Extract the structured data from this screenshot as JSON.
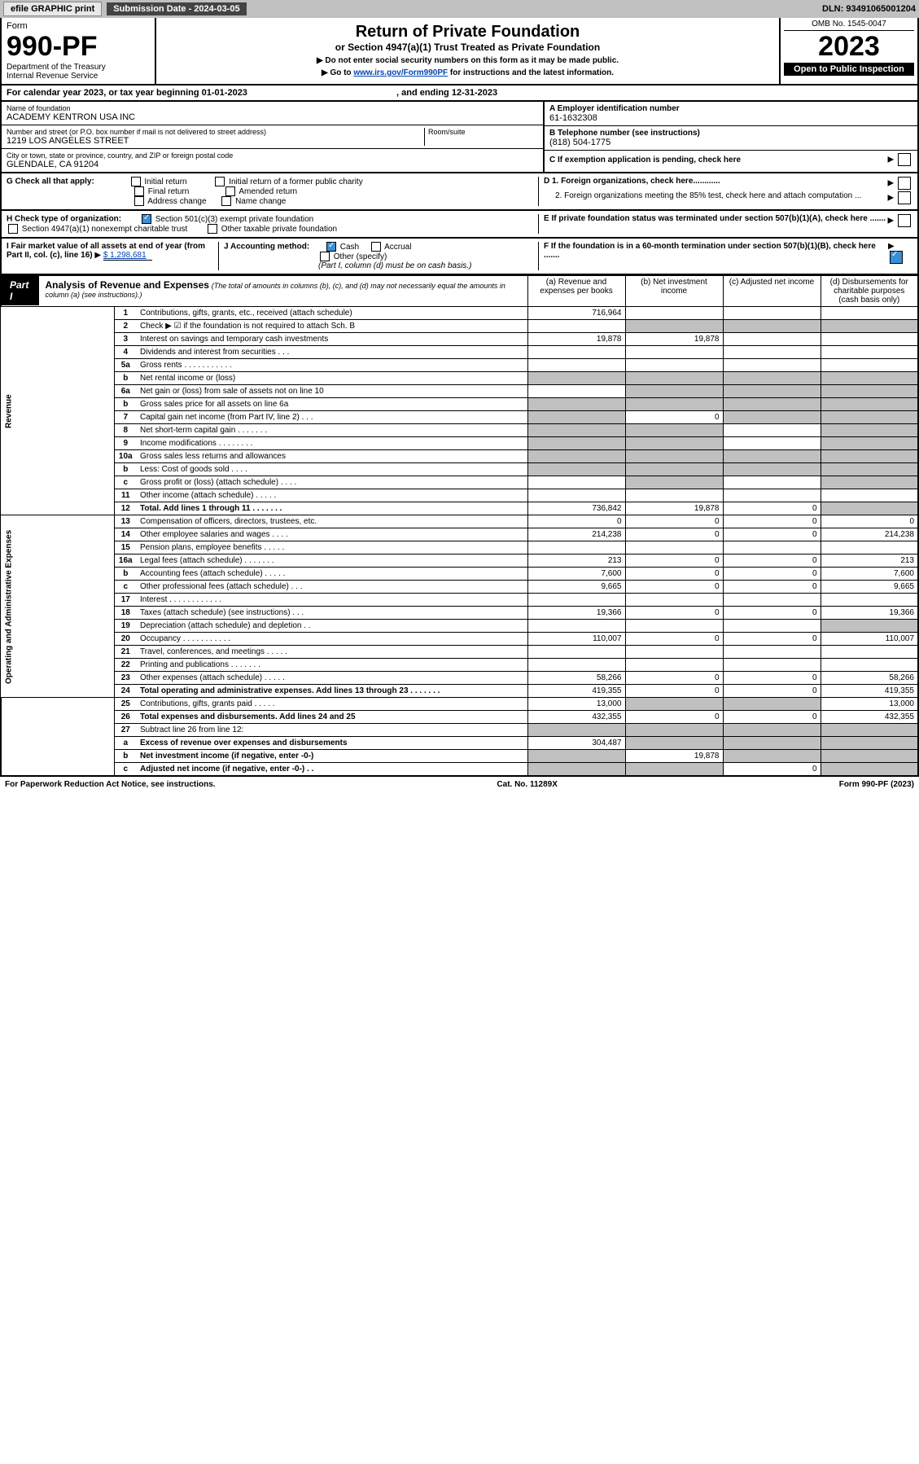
{
  "topbar": {
    "efile": "efile GRAPHIC print",
    "sub_label": "Submission Date - 2024-03-05",
    "dln": "DLN: 93491065001204"
  },
  "header": {
    "form_word": "Form",
    "form_num": "990-PF",
    "dept": "Department of the Treasury",
    "irs": "Internal Revenue Service",
    "title": "Return of Private Foundation",
    "subtitle": "or Section 4947(a)(1) Trust Treated as Private Foundation",
    "note1": "▶ Do not enter social security numbers on this form as it may be made public.",
    "note2_pre": "▶ Go to ",
    "note2_link": "www.irs.gov/Form990PF",
    "note2_post": " for instructions and the latest information.",
    "omb": "OMB No. 1545-0047",
    "year": "2023",
    "open": "Open to Public Inspection"
  },
  "cal": {
    "text_pre": "For calendar year 2023, or tax year beginning ",
    "begin": "01-01-2023",
    "mid": " , and ending ",
    "end": "12-31-2023"
  },
  "foundation": {
    "name_label": "Name of foundation",
    "name": "ACADEMY KENTRON USA INC",
    "addr_label": "Number and street (or P.O. box number if mail is not delivered to street address)",
    "addr": "1219 LOS ANGELES STREET",
    "room_label": "Room/suite",
    "city_label": "City or town, state or province, country, and ZIP or foreign postal code",
    "city": "GLENDALE, CA  91204",
    "a_label": "A Employer identification number",
    "ein": "61-1632308",
    "b_label": "B Telephone number (see instructions)",
    "phone": "(818) 504-1775",
    "c_label": "C If exemption application is pending, check here",
    "d1": "D 1. Foreign organizations, check here............",
    "d2": "2. Foreign organizations meeting the 85% test, check here and attach computation ...",
    "e_label": "E  If private foundation status was terminated under section 507(b)(1)(A), check here .......",
    "f_label": "F  If the foundation is in a 60-month termination under section 507(b)(1)(B), check here .......",
    "g_label": "G Check all that apply:",
    "g_opts": [
      "Initial return",
      "Initial return of a former public charity",
      "Final return",
      "Amended return",
      "Address change",
      "Name change"
    ],
    "h_label": "H Check type of organization:",
    "h1": "Section 501(c)(3) exempt private foundation",
    "h2": "Section 4947(a)(1) nonexempt charitable trust",
    "h3": "Other taxable private foundation",
    "i_label": "I Fair market value of all assets at end of year (from Part II, col. (c), line 16)",
    "i_val": "$  1,298,681",
    "j_label": "J Accounting method:",
    "j_cash": "Cash",
    "j_accrual": "Accrual",
    "j_other": "Other (specify)",
    "j_note": "(Part I, column (d) must be on cash basis.)"
  },
  "part1": {
    "num": "Part I",
    "title": "Analysis of Revenue and Expenses",
    "title_note": "(The total of amounts in columns (b), (c), and (d) may not necessarily equal the amounts in column (a) (see instructions).)",
    "cols": {
      "a": "(a) Revenue and expenses per books",
      "b": "(b) Net investment income",
      "c": "(c) Adjusted net income",
      "d": "(d) Disbursements for charitable purposes (cash basis only)"
    },
    "sections": {
      "rev": "Revenue",
      "opex": "Operating and Administrative Expenses"
    },
    "rows": [
      {
        "n": "1",
        "t": "Contributions, gifts, grants, etc., received (attach schedule)",
        "a": "716,964",
        "b": "",
        "c": "",
        "d": ""
      },
      {
        "n": "2",
        "t": "Check ▶ ☑ if the foundation is not required to attach Sch. B",
        "a": "",
        "b": "",
        "c": "",
        "d": "",
        "shadeA": false,
        "shadeBCD": true,
        "blank": true
      },
      {
        "n": "3",
        "t": "Interest on savings and temporary cash investments",
        "a": "19,878",
        "b": "19,878",
        "c": "",
        "d": ""
      },
      {
        "n": "4",
        "t": "Dividends and interest from securities   .   .   .",
        "a": "",
        "b": "",
        "c": "",
        "d": ""
      },
      {
        "n": "5a",
        "t": "Gross rents   .   .   .   .   .   .   .   .   .   .   .",
        "a": "",
        "b": "",
        "c": "",
        "d": ""
      },
      {
        "n": "b",
        "t": "Net rental income or (loss)",
        "a": "",
        "b": "",
        "c": "",
        "d": "",
        "shadeAll": true
      },
      {
        "n": "6a",
        "t": "Net gain or (loss) from sale of assets not on line 10",
        "a": "",
        "b": "",
        "c": "",
        "d": "",
        "shadeBCD": true
      },
      {
        "n": "b",
        "t": "Gross sales price for all assets on line 6a",
        "a": "",
        "b": "",
        "c": "",
        "d": "",
        "shadeAll": true
      },
      {
        "n": "7",
        "t": "Capital gain net income (from Part IV, line 2)   .   .   .",
        "a": "",
        "b": "0",
        "c": "",
        "d": "",
        "shadeA": true,
        "shadeCD": true
      },
      {
        "n": "8",
        "t": "Net short-term capital gain   .   .   .   .   .   .   .",
        "a": "",
        "b": "",
        "c": "",
        "d": "",
        "shadeAB": true,
        "shadeD": true
      },
      {
        "n": "9",
        "t": "Income modifications   .   .   .   .   .   .   .   .",
        "a": "",
        "b": "",
        "c": "",
        "d": "",
        "shadeAB": true,
        "shadeD": true
      },
      {
        "n": "10a",
        "t": "Gross sales less returns and allowances",
        "a": "",
        "b": "",
        "c": "",
        "d": "",
        "shadeAll": true
      },
      {
        "n": "b",
        "t": "Less: Cost of goods sold   .   .   .   .",
        "a": "",
        "b": "",
        "c": "",
        "d": "",
        "shadeAll": true
      },
      {
        "n": "c",
        "t": "Gross profit or (loss) (attach schedule)   .   .   .   .",
        "a": "",
        "b": "",
        "c": "",
        "d": "",
        "shadeB": true,
        "shadeD": true
      },
      {
        "n": "11",
        "t": "Other income (attach schedule)   .   .   .   .   .",
        "a": "",
        "b": "",
        "c": "",
        "d": ""
      },
      {
        "n": "12",
        "t": "Total. Add lines 1 through 11   .   .   .   .   .   .   .",
        "a": "736,842",
        "b": "19,878",
        "c": "0",
        "d": "",
        "bold": true,
        "shadeD": true
      },
      {
        "n": "13",
        "t": "Compensation of officers, directors, trustees, etc.",
        "a": "0",
        "b": "0",
        "c": "0",
        "d": "0"
      },
      {
        "n": "14",
        "t": "Other employee salaries and wages   .   .   .   .",
        "a": "214,238",
        "b": "0",
        "c": "0",
        "d": "214,238"
      },
      {
        "n": "15",
        "t": "Pension plans, employee benefits   .   .   .   .   .",
        "a": "",
        "b": "",
        "c": "",
        "d": ""
      },
      {
        "n": "16a",
        "t": "Legal fees (attach schedule)   .   .   .   .   .   .   .",
        "a": "213",
        "b": "0",
        "c": "0",
        "d": "213"
      },
      {
        "n": "b",
        "t": "Accounting fees (attach schedule)   .   .   .   .   .",
        "a": "7,600",
        "b": "0",
        "c": "0",
        "d": "7,600"
      },
      {
        "n": "c",
        "t": "Other professional fees (attach schedule)   .   .   .",
        "a": "9,665",
        "b": "0",
        "c": "0",
        "d": "9,665"
      },
      {
        "n": "17",
        "t": "Interest   .   .   .   .   .   .   .   .   .   .   .   .",
        "a": "",
        "b": "",
        "c": "",
        "d": ""
      },
      {
        "n": "18",
        "t": "Taxes (attach schedule) (see instructions)   .   .   .",
        "a": "19,366",
        "b": "0",
        "c": "0",
        "d": "19,366"
      },
      {
        "n": "19",
        "t": "Depreciation (attach schedule) and depletion   .   .",
        "a": "",
        "b": "",
        "c": "",
        "d": "",
        "shadeD": true
      },
      {
        "n": "20",
        "t": "Occupancy   .   .   .   .   .   .   .   .   .   .   .",
        "a": "110,007",
        "b": "0",
        "c": "0",
        "d": "110,007"
      },
      {
        "n": "21",
        "t": "Travel, conferences, and meetings   .   .   .   .   .",
        "a": "",
        "b": "",
        "c": "",
        "d": ""
      },
      {
        "n": "22",
        "t": "Printing and publications   .   .   .   .   .   .   .",
        "a": "",
        "b": "",
        "c": "",
        "d": ""
      },
      {
        "n": "23",
        "t": "Other expenses (attach schedule)   .   .   .   .   .",
        "a": "58,266",
        "b": "0",
        "c": "0",
        "d": "58,266"
      },
      {
        "n": "24",
        "t": "Total operating and administrative expenses. Add lines 13 through 23   .   .   .   .   .   .   .",
        "a": "419,355",
        "b": "0",
        "c": "0",
        "d": "419,355",
        "bold": true
      },
      {
        "n": "25",
        "t": "Contributions, gifts, grants paid   .   .   .   .   .",
        "a": "13,000",
        "b": "",
        "c": "",
        "d": "13,000",
        "shadeBC": true
      },
      {
        "n": "26",
        "t": "Total expenses and disbursements. Add lines 24 and 25",
        "a": "432,355",
        "b": "0",
        "c": "0",
        "d": "432,355",
        "bold": true
      },
      {
        "n": "27",
        "t": "Subtract line 26 from line 12:",
        "a": "",
        "b": "",
        "c": "",
        "d": "",
        "shadeAll": true
      },
      {
        "n": "a",
        "t": "Excess of revenue over expenses and disbursements",
        "a": "304,487",
        "b": "",
        "c": "",
        "d": "",
        "bold": true,
        "shadeBCD": true
      },
      {
        "n": "b",
        "t": "Net investment income (if negative, enter -0-)",
        "a": "",
        "b": "19,878",
        "c": "",
        "d": "",
        "bold": true,
        "shadeA": true,
        "shadeCD": true
      },
      {
        "n": "c",
        "t": "Adjusted net income (if negative, enter -0-)   .   .",
        "a": "",
        "b": "",
        "c": "0",
        "d": "",
        "bold": true,
        "shadeAB": true,
        "shadeD": true
      }
    ]
  },
  "footer": {
    "left": "For Paperwork Reduction Act Notice, see instructions.",
    "mid": "Cat. No. 11289X",
    "right": "Form 990-PF (2023)"
  }
}
